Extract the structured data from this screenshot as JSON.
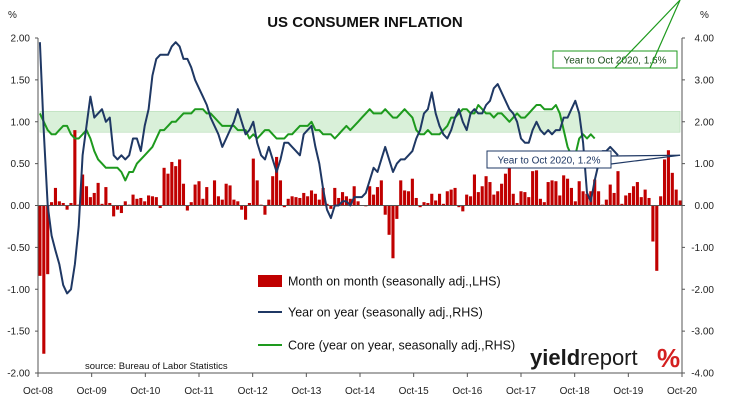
{
  "chart_data": {
    "type": "bar+line",
    "title": "US CONSUMER INFLATION",
    "left_unit": "%",
    "right_unit": "%",
    "left_axis": {
      "min": -2.0,
      "max": 2.0,
      "ticks": [
        "2.00",
        "1.50",
        "1.00",
        "0.50",
        "0.00",
        "-0.50",
        "-1.00",
        "-1.50",
        "-2.00"
      ]
    },
    "right_axis": {
      "min": -4.0,
      "max": 4.0,
      "ticks": [
        "4.00",
        "3.00",
        "2.00",
        "1.00",
        "0.00",
        "-1.00",
        "-2.00",
        "-3.00",
        "-4.00"
      ]
    },
    "x_ticks": [
      "Oct-08",
      "Oct-09",
      "Oct-10",
      "Oct-11",
      "Oct-12",
      "Oct-13",
      "Oct-14",
      "Oct-15",
      "Oct-16",
      "Oct-17",
      "Oct-18",
      "Oct-19",
      "Oct-20"
    ],
    "x_range": [
      "2008-10",
      "2020-10"
    ],
    "series": [
      {
        "name": "Month on month (seasonally adj.,LHS)",
        "kind": "bar",
        "axis": "left",
        "color": "#c00000",
        "values": [
          -0.84,
          -1.77,
          -0.82,
          0.04,
          0.21,
          0.05,
          0.03,
          -0.05,
          0.03,
          0.9,
          0.01,
          0.37,
          0.23,
          0.1,
          0.15,
          0.27,
          0.02,
          0.22,
          0.03,
          -0.13,
          -0.05,
          -0.09,
          0.05,
          0.01,
          0.13,
          0.08,
          0.09,
          0.05,
          0.12,
          0.11,
          0.1,
          -0.03,
          0.45,
          0.38,
          0.52,
          0.47,
          0.55,
          0.26,
          -0.06,
          0.04,
          0.25,
          0.29,
          0.08,
          0.22,
          0.01,
          0.3,
          0.11,
          0.07,
          0.26,
          0.24,
          0.07,
          0.05,
          -0.05,
          -0.17,
          0.03,
          0.56,
          0.3,
          0.01,
          -0.11,
          0.07,
          0.35,
          0.58,
          0.3,
          -0.02,
          0.08,
          0.11,
          0.1,
          0.09,
          0.15,
          0.11,
          0.18,
          0.14,
          0.07,
          0.21,
          0.02,
          -0.04,
          0.21,
          0.09,
          0.16,
          0.11,
          0.08,
          0.23,
          0.05,
          0.0,
          -0.01,
          0.23,
          0.13,
          0.22,
          0.3,
          -0.11,
          -0.35,
          -0.63,
          -0.16,
          0.3,
          0.18,
          0.17,
          0.32,
          0.09,
          -0.02,
          0.04,
          0.03,
          0.14,
          0.06,
          0.14,
          0.02,
          0.17,
          0.19,
          0.21,
          -0.02,
          -0.07,
          0.13,
          0.11,
          0.37,
          0.16,
          0.23,
          0.35,
          0.28,
          0.13,
          0.17,
          0.26,
          0.38,
          0.45,
          0.14,
          0.03,
          0.17,
          0.16,
          0.1,
          0.41,
          0.42,
          0.08,
          0.04,
          0.28,
          0.3,
          0.29,
          0.12,
          0.36,
          0.32,
          0.21,
          0.05,
          0.29,
          0.17,
          0.14,
          0.17,
          0.31,
          0.17,
          0.01,
          0.07,
          0.25,
          0.15,
          0.41,
          0.02,
          0.12,
          0.15,
          0.23,
          0.28,
          0.1,
          0.19,
          0.09,
          -0.43,
          -0.78,
          0.11,
          0.55,
          0.66,
          0.39,
          0.19,
          0.06
        ]
      },
      {
        "name": "Year on year (seasonally adj.,RHS)",
        "kind": "line",
        "axis": "right",
        "color": "#1f3864",
        "values": [
          3.9,
          1.75,
          0.0,
          -0.72,
          -1.08,
          -1.4,
          -1.9,
          -2.1,
          -2.0,
          -1.4,
          -0.5,
          1.2,
          1.9,
          2.6,
          2.1,
          2.2,
          2.3,
          2.0,
          2.1,
          1.2,
          1.1,
          1.2,
          1.1,
          1.2,
          1.6,
          1.6,
          1.3,
          1.9,
          2.3,
          3.1,
          3.5,
          3.6,
          3.6,
          3.6,
          3.8,
          3.9,
          3.8,
          3.5,
          3.5,
          3.3,
          3.0,
          2.8,
          2.6,
          2.4,
          2.1,
          1.9,
          1.7,
          1.4,
          1.6,
          1.8,
          2.0,
          2.3,
          2.0,
          1.7,
          1.8,
          2.0,
          1.5,
          1.2,
          1.1,
          1.4,
          1.1,
          0.8,
          1.1,
          1.5,
          1.5,
          1.4,
          1.3,
          1.2,
          1.7,
          1.8,
          1.9,
          1.4,
          1.0,
          0.4,
          -0.1,
          -0.3,
          0.0,
          0.0,
          0.1,
          0.1,
          0.0,
          0.2,
          0.2,
          0.2,
          0.3,
          0.6,
          0.9,
          0.8,
          1.1,
          1.4,
          1.1,
          0.8,
          1.0,
          1.1,
          1.1,
          1.2,
          1.3,
          1.6,
          1.8,
          2.2,
          2.3,
          2.7,
          2.2,
          1.9,
          1.7,
          1.6,
          1.8,
          2.1,
          2.3,
          2.0,
          1.8,
          2.2,
          2.3,
          2.2,
          2.2,
          2.4,
          2.5,
          2.8,
          2.9,
          2.7,
          2.5,
          2.3,
          2.2,
          2.0,
          1.6,
          1.5,
          1.5,
          1.8,
          2.0,
          1.8,
          1.7,
          1.8,
          1.7,
          1.8,
          1.8,
          2.1,
          2.1,
          2.3,
          2.5,
          2.2,
          1.5,
          0.3,
          0.1,
          0.6,
          1.0,
          1.3,
          1.3,
          1.4,
          1.3,
          1.2
        ]
      },
      {
        "name": "Core (year on year, seasonally adj.,RHS)",
        "kind": "line",
        "axis": "right",
        "color": "#1e9a1e",
        "values": [
          2.2,
          2.0,
          1.8,
          1.7,
          1.7,
          1.8,
          1.9,
          1.9,
          1.7,
          1.6,
          1.6,
          1.7,
          1.8,
          1.6,
          1.3,
          1.1,
          1.0,
          0.9,
          0.9,
          0.9,
          0.9,
          0.8,
          0.6,
          0.8,
          0.8,
          1.0,
          1.1,
          1.2,
          1.3,
          1.4,
          1.6,
          1.8,
          1.8,
          1.9,
          2.0,
          2.0,
          2.1,
          2.2,
          2.2,
          2.2,
          2.3,
          2.3,
          2.3,
          2.2,
          2.2,
          2.1,
          2.0,
          1.9,
          1.9,
          1.9,
          1.9,
          1.8,
          1.8,
          1.8,
          1.6,
          1.7,
          1.6,
          1.7,
          1.8,
          1.8,
          1.7,
          1.6,
          1.6,
          1.6,
          1.7,
          1.7,
          1.8,
          1.9,
          1.9,
          1.9,
          2.0,
          1.8,
          1.8,
          1.7,
          1.7,
          1.7,
          1.6,
          1.7,
          1.8,
          1.9,
          1.8,
          1.9,
          2.0,
          2.1,
          2.2,
          2.3,
          2.2,
          2.2,
          2.2,
          2.3,
          2.2,
          2.1,
          2.1,
          2.2,
          2.3,
          2.2,
          2.1,
          1.8,
          1.7,
          1.7,
          1.8,
          1.7,
          1.7,
          1.7,
          1.8,
          1.9,
          2.1,
          2.1,
          2.2,
          2.3,
          2.3,
          2.2,
          2.2,
          2.4,
          2.3,
          2.2,
          2.2,
          2.1,
          2.2,
          2.2,
          2.1,
          2.0,
          2.1,
          2.2,
          2.1,
          2.1,
          2.2,
          2.3,
          2.4,
          2.4,
          2.3,
          2.3,
          2.3,
          2.4,
          2.2,
          1.8,
          1.4,
          1.2,
          1.2,
          1.6,
          1.7,
          1.6,
          1.7,
          1.6
        ]
      }
    ],
    "target_band": {
      "axis": "right",
      "from": 1.75,
      "to": 2.25,
      "color": "#d9f0d9"
    },
    "annotations": [
      {
        "text": "Year to Oct 2020, 1.6%",
        "series": "Core",
        "color": "#1e9a1e"
      },
      {
        "text": "Year to Oct 2020, 1.2%",
        "series": "Year on year",
        "color": "#1f3864"
      }
    ],
    "legend_placement": "lower-center",
    "grid": false,
    "source": "source: Bureau of Labor Statistics",
    "brand": "yieldreport %"
  }
}
